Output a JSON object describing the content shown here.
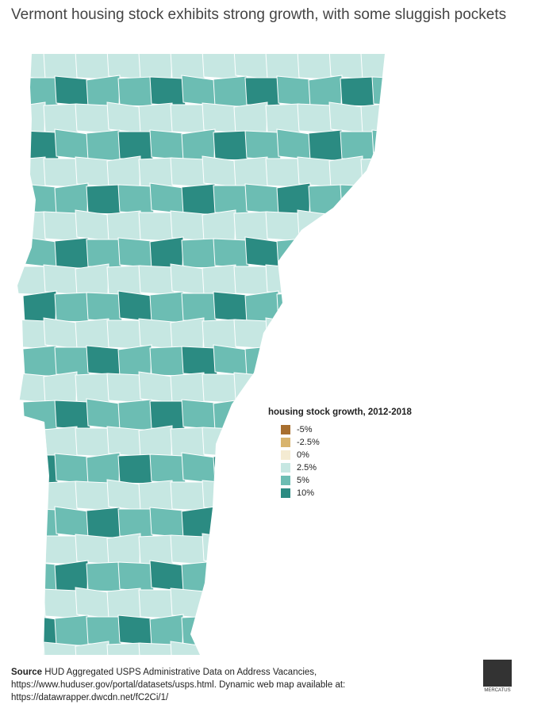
{
  "header": {
    "title": "Vermont housing stock exhibits strong growth, with some sluggish pockets"
  },
  "legend": {
    "title": "housing stock growth, 2012-2018",
    "items": [
      {
        "label": "-5%",
        "color": "#a86f2f"
      },
      {
        "label": "-2.5%",
        "color": "#d8b46e"
      },
      {
        "label": "0%",
        "color": "#f4ebd2"
      },
      {
        "label": "2.5%",
        "color": "#c6e7e2"
      },
      {
        "label": "5%",
        "color": "#6cbdb3"
      },
      {
        "label": "10%",
        "color": "#2b8b82"
      }
    ]
  },
  "footer": {
    "source_label": "Source",
    "source_text": "HUD Aggregated USPS Administrative Data on Address Vacancies, https://www.huduser.gov/portal/datasets/usps.html. Dynamic web map available at: https://datawrapper.dwcdn.net/fC2Ci/1/",
    "logo": "MERCATUS"
  }
}
